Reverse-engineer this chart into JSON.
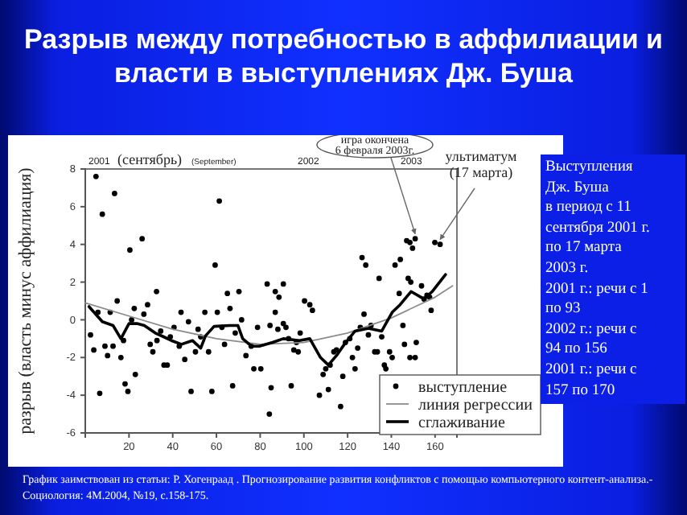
{
  "chart_data": {
    "type": "scatter",
    "title": "Разрыв между потребностью в аффилиации и власти в выступлениях Дж. Буша",
    "ylabel": "разрыв (власть минус аффилиация)",
    "xlim": [
      0,
      170
    ],
    "xticks": [
      20,
      40,
      60,
      80,
      100,
      120,
      140,
      160
    ],
    "ylim": [
      -6,
      8
    ],
    "yticks": [
      -6,
      -4,
      -2,
      0,
      2,
      4,
      6,
      8
    ],
    "legend": "bottom right",
    "grid": false,
    "series": [
      {
        "name": "выступление",
        "marker": "circle",
        "color": "#000000",
        "x": [
          2.4,
          3.9,
          4.9,
          5.8,
          6.6,
          7.8,
          9,
          10.2,
          11.4,
          12.7,
          13.4,
          14.6,
          16.3,
          17.5,
          18.2,
          19.5,
          20.4,
          21.2,
          22.4,
          22.9,
          26,
          26.8,
          28.5,
          29.7,
          30.9,
          32.6,
          32.8,
          34.5,
          36,
          37.5,
          38.9,
          40.6,
          43,
          43.8,
          45.5,
          47.2,
          48.4,
          50.4,
          51.6,
          52.8,
          54.7,
          56.4,
          57.9,
          59.4,
          60.4,
          61.3,
          62.5,
          63.7,
          65,
          66.2,
          67.4,
          68.6,
          70.3,
          71.5,
          73.5,
          75.9,
          77.1,
          78.8,
          80.3,
          83.2,
          84.2,
          84.5,
          85,
          86.9,
          86.9,
          88.1,
          88.6,
          90.6,
          90.6,
          91.8,
          93,
          94.2,
          95.4,
          96.6,
          97.4,
          98.3,
          100.3,
          102.7,
          103.9,
          107.1,
          108.8,
          110,
          111.2,
          112,
          113.7,
          114.9,
          116.8,
          117.8,
          119,
          121,
          122.2,
          123.4,
          124.6,
          125.8,
          126.6,
          127.5,
          128.3,
          129.5,
          130.7,
          132.4,
          133.6,
          134.4,
          135.6,
          136.8,
          137.5,
          139.2,
          140.4,
          141.7,
          143.6,
          144.1,
          145.3,
          146,
          147,
          147.7,
          148.5,
          148.5,
          148.9,
          149.7,
          150.9,
          150.9,
          151.4,
          153.8,
          155,
          156.3,
          157.5,
          158.2,
          159.9,
          162.3
        ],
        "values": [
          -0.8,
          -1.6,
          7.6,
          0.4,
          -3.9,
          5.6,
          -1.4,
          -1.9,
          0.4,
          -1.4,
          6.7,
          1.0,
          -2.0,
          -1.1,
          -3.4,
          -3.8,
          3.7,
          0,
          0.6,
          -2.9,
          4.3,
          0.3,
          0.8,
          -1.3,
          -1.7,
          1.5,
          -1.1,
          -0.6,
          -2.4,
          -2.4,
          -0.9,
          -0.4,
          -1.4,
          0.4,
          -2.1,
          -0.1,
          -3.8,
          -1.7,
          -0.5,
          -0.9,
          0.4,
          -1.7,
          -3.8,
          2.9,
          0.4,
          6.3,
          -0.4,
          -1.3,
          1.4,
          0.6,
          -3.5,
          -0.7,
          1.5,
          0,
          -1.9,
          -1.4,
          -2.6,
          -0.4,
          -2.6,
          1.9,
          -5.0,
          -0.3,
          -3.6,
          1.5,
          0.4,
          -0.5,
          1.2,
          1.9,
          -0.2,
          -0.4,
          -1.0,
          -3.5,
          -1.6,
          -1.2,
          -1.7,
          -0.7,
          1.0,
          0.8,
          0.5,
          -4.0,
          -2.9,
          -2.6,
          -3.7,
          -2.4,
          -1.7,
          -1.6,
          -4.6,
          -3.0,
          -1.2,
          -1.0,
          -2.0,
          -2.6,
          -1.5,
          -0.4,
          3.3,
          0.3,
          2.9,
          -0.8,
          -0.3,
          -1.7,
          -1.7,
          2.2,
          -0.9,
          -2.4,
          -2.6,
          -1.7,
          -2.0,
          2.9,
          1.4,
          3.2,
          -0.3,
          -1.3,
          4.2,
          2.2,
          4.1,
          -2.0,
          2.0,
          3.8,
          4.3,
          -2.0,
          -1.2,
          1.8,
          1.1,
          1.3,
          1.2,
          0.5,
          4.1,
          4.0
        ]
      },
      {
        "name": "линия регрессии",
        "type": "line",
        "color": "#8c8c8c",
        "x": [
          0,
          20,
          40,
          60,
          80,
          100,
          120,
          140,
          160,
          168
        ],
        "values": [
          0.9,
          0.2,
          -0.5,
          -1.0,
          -1.3,
          -1.2,
          -0.7,
          0.1,
          1.2,
          1.8
        ]
      },
      {
        "name": "сглаживание",
        "type": "line",
        "color": "#000000",
        "x": [
          1.7,
          7.8,
          12.7,
          16.3,
          20,
          23.6,
          27,
          32,
          35.8,
          39.4,
          44,
          49,
          52.8,
          55,
          58.9,
          66,
          69.8,
          72,
          76,
          79.6,
          85.7,
          90.6,
          97.9,
          102.7,
          107.6,
          111.2,
          114.9,
          118.5,
          123.4,
          129.5,
          135.6,
          140.4,
          144,
          149,
          155,
          158.7,
          164.8
        ],
        "values": [
          0.7,
          -0.1,
          -0.3,
          -1.0,
          -0.2,
          -0.2,
          -0.3,
          -0.7,
          -0.9,
          -1.1,
          -1.3,
          -1.1,
          -1.5,
          -0.85,
          -0.35,
          -0.3,
          -0.3,
          -1.0,
          -1.4,
          -1.4,
          -1.2,
          -1.0,
          -1.1,
          -1.0,
          -2.0,
          -2.4,
          -1.9,
          -1.3,
          -0.6,
          -0.45,
          -0.6,
          0.4,
          0.8,
          1.5,
          1.1,
          1.5,
          2.4
        ]
      }
    ],
    "annotations": [
      "2001",
      "(сентябрь)",
      "(September)",
      "2002",
      "2003",
      {
        "text": "игра окончена 6 февраля 2003г.",
        "x": 150.9,
        "y": 4.3
      },
      {
        "text": "ультиматум (17 марта)",
        "x": 162.3,
        "y": 4.0
      },
      "Выступления\nДж. Буша\nв период с 11\nсентября 2001 г.\nпо 17 марта\n2003 г.\n2001 г.:  речи с 1\nпо 93\n2002 г.:  речи с\n94 по 156\n2001 г.:  речи с\n157 по 170",
      "График заимствован из статьи: Р. Хогенраад . Прогнозирование развития конфликтов с помощью компьютерного контент-анализа.-Социология: 4М.2004, №19, с.158-175."
    ]
  }
}
